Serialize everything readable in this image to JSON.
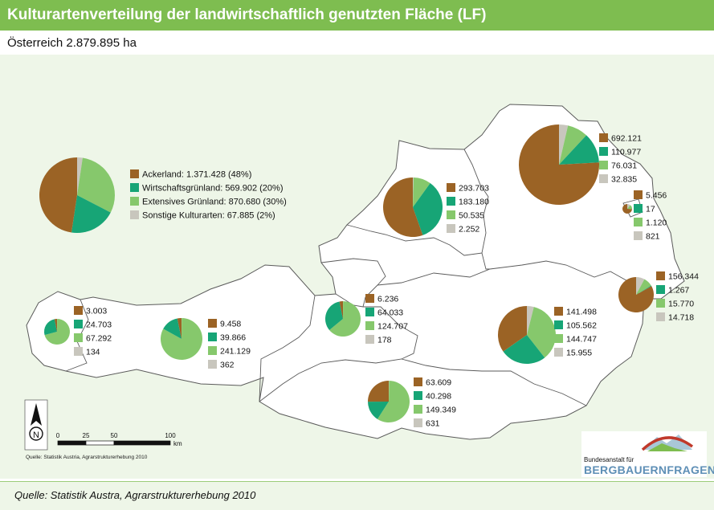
{
  "title": "Kulturartenverteilung der landwirtschaftlich genutzten Fläche (LF)",
  "subtitle": "Österreich 2.879.895 ha",
  "colors": {
    "ackerland": "#9b6325",
    "wirtschaftsgruenland": "#17a576",
    "extensives_gruenland": "#86c86c",
    "sonstige": "#c8c6bd",
    "header": "#7ebd50",
    "map_fill": "#ffffff",
    "map_border": "#5a5a5a"
  },
  "legend": [
    {
      "key": "ackerland",
      "label": "Ackerland: 1.371.428 (48%)"
    },
    {
      "key": "wirtschaftsgruenland",
      "label": "Wirtschaftsgrünland: 569.902 (20%)"
    },
    {
      "key": "extensives_gruenland",
      "label": "Extensives Grünland: 870.680 (30%)"
    },
    {
      "key": "sonstige",
      "label": "Sonstige Kulturarten: 67.885 (2%)"
    }
  ],
  "chart_data": {
    "type": "pie",
    "categories": [
      "Ackerland",
      "Wirtschaftsgrünland",
      "Extensives Grünland",
      "Sonstige Kulturarten"
    ],
    "austria_total": [
      1371428,
      569902,
      870680,
      67885
    ],
    "regions": [
      {
        "id": "vorarlberg",
        "labels": [
          "3.003",
          "24.703",
          "67.292",
          "134"
        ],
        "values": [
          3003,
          24703,
          67292,
          134
        ]
      },
      {
        "id": "tirol",
        "labels": [
          "9.458",
          "39.866",
          "241.129",
          "362"
        ],
        "values": [
          9458,
          39866,
          241129,
          362
        ]
      },
      {
        "id": "salzburg",
        "labels": [
          "6.236",
          "64.033",
          "124.707",
          "178"
        ],
        "values": [
          6236,
          64033,
          124707,
          178
        ]
      },
      {
        "id": "oberoesterreich",
        "labels": [
          "293.703",
          "183.180",
          "50.535",
          "2.252"
        ],
        "values": [
          293703,
          183180,
          50535,
          2252
        ]
      },
      {
        "id": "niederoesterreich",
        "labels": [
          "692.121",
          "110.977",
          "76.031",
          "32.835"
        ],
        "values": [
          692121,
          110977,
          76031,
          32835
        ]
      },
      {
        "id": "wien",
        "labels": [
          "5.456",
          "17",
          "1.120",
          "821"
        ],
        "values": [
          5456,
          17,
          1120,
          821
        ]
      },
      {
        "id": "burgenland",
        "labels": [
          "156.344",
          "1.267",
          "15.770",
          "14.718"
        ],
        "values": [
          156344,
          1267,
          15770,
          14718
        ]
      },
      {
        "id": "steiermark",
        "labels": [
          "141.498",
          "105.562",
          "144.747",
          "15.955"
        ],
        "values": [
          141498,
          105562,
          144747,
          15955
        ]
      },
      {
        "id": "kaernten",
        "labels": [
          "63.609",
          "40.298",
          "149.349",
          "631"
        ],
        "values": [
          63609,
          40298,
          149349,
          631
        ]
      }
    ]
  },
  "scale_bar": {
    "ticks": [
      "0",
      "25",
      "50",
      "100"
    ],
    "unit": "km"
  },
  "north_arrow_label": "N",
  "map_source": "Quelle: Statistik Austria, Agrarstrukturerhebung 2010",
  "footer_source": "Quelle: Statistik Austra, Agrarstrukturerhebung 2010",
  "logo": {
    "line1": "Bundesanstalt für",
    "line2": "BERGBAUERNFRAGEN"
  }
}
